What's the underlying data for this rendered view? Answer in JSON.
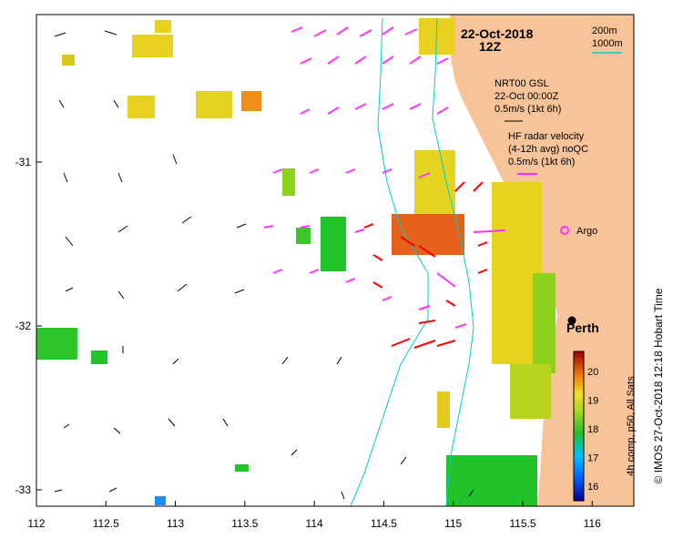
{
  "title": {
    "date": "22-Oct-2018",
    "time": "12Z"
  },
  "depth_legend": {
    "contour_1": "200m",
    "contour_2": "1000m"
  },
  "gsl_legend": {
    "line1": "NRT00 GSL",
    "line2": "22-Oct 00:00Z",
    "line3": "0.5m/s (1kt 6h)"
  },
  "radar_legend": {
    "line1": "HF radar velocity",
    "line2": "(4-12h avg) noQC",
    "line3": "0.5m/s (1kt 6h)"
  },
  "argo_label": "Argo",
  "city_label": "Perth",
  "colorbar": {
    "title": "4h comp, p50, All Sats",
    "ticks": [
      "16",
      "17",
      "18",
      "19",
      "20"
    ],
    "min": 15.5,
    "max": 20.7
  },
  "credit": "© IMOS 27-Oct-2018 12:18 Hobart Time",
  "axes": {
    "x_ticks": [
      "112",
      "112.5",
      "113",
      "113.5",
      "114",
      "114.5",
      "115",
      "115.5",
      "116"
    ],
    "y_ticks": [
      "-31",
      "-32",
      "-33"
    ],
    "xlim": [
      112,
      116.3
    ],
    "ylim": [
      -33.1,
      -30.1
    ]
  },
  "colors": {
    "land": "#f7c398",
    "radar_arrows": "#ff33ff",
    "radar_arrows_strong": "#ff0000",
    "gsl_arrows": "#000000",
    "contours": "#00cccc",
    "argo": "#ff33ff"
  }
}
